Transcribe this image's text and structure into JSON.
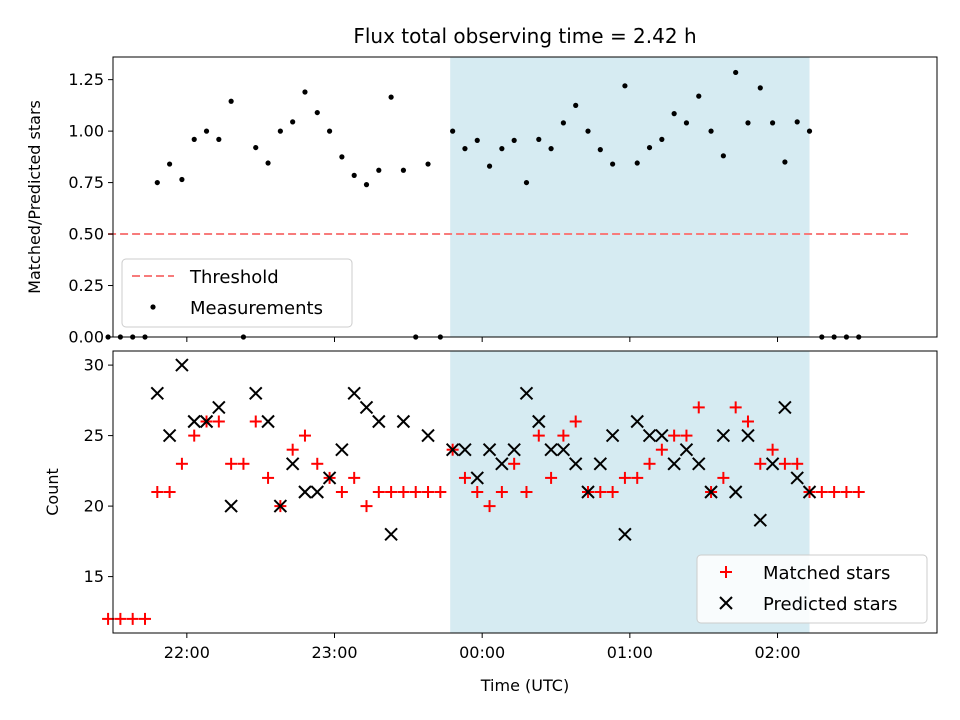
{
  "colors": {
    "threshold": "#f77b7b",
    "measurement": "#000000",
    "matched": "#ff0000",
    "predicted": "#000000",
    "highlight": "#add8e6"
  },
  "chart_data": [
    {
      "type": "scatter",
      "title": "Flux total observing time = 2.42 h",
      "ylabel": "Matched/Predicted stars",
      "ylim": [
        0,
        1.36
      ],
      "y_ticks": [
        0.0,
        0.25,
        0.5,
        0.75,
        1.0,
        1.25
      ],
      "y_tick_labels": [
        "0.00",
        "0.25",
        "0.50",
        "0.75",
        "1.00",
        "1.25"
      ],
      "highlight_span": [
        "23:47",
        "02:13"
      ],
      "legend_position": "lower-left",
      "threshold": {
        "name": "Threshold",
        "value": 0.5,
        "x_range": [
          "21:28",
          "02:53"
        ],
        "style": "dashed"
      },
      "series": [
        {
          "name": "Measurements",
          "points": [
            [
              "21:28",
              0.0
            ],
            [
              "21:33",
              0.0
            ],
            [
              "21:38",
              0.0
            ],
            [
              "21:43",
              0.0
            ],
            [
              "21:48",
              0.75
            ],
            [
              "21:53",
              0.84
            ],
            [
              "21:58",
              0.765
            ],
            [
              "22:03",
              0.96
            ],
            [
              "22:08",
              1.0
            ],
            [
              "22:13",
              0.96
            ],
            [
              "22:18",
              1.145
            ],
            [
              "22:23",
              0.0
            ],
            [
              "22:28",
              0.92
            ],
            [
              "22:33",
              0.845
            ],
            [
              "22:38",
              1.0
            ],
            [
              "22:43",
              1.045
            ],
            [
              "22:48",
              1.19
            ],
            [
              "22:53",
              1.09
            ],
            [
              "22:58",
              1.0
            ],
            [
              "23:03",
              0.875
            ],
            [
              "23:08",
              0.785
            ],
            [
              "23:13",
              0.74
            ],
            [
              "23:18",
              0.81
            ],
            [
              "23:23",
              1.165
            ],
            [
              "23:28",
              0.81
            ],
            [
              "23:33",
              0.0
            ],
            [
              "23:38",
              0.84
            ],
            [
              "23:43",
              0.0
            ],
            [
              "23:48",
              1.0
            ],
            [
              "23:53",
              0.915
            ],
            [
              "23:58",
              0.955
            ],
            [
              "00:03",
              0.83
            ],
            [
              "00:08",
              0.915
            ],
            [
              "00:13",
              0.955
            ],
            [
              "00:18",
              0.75
            ],
            [
              "00:23",
              0.96
            ],
            [
              "00:28",
              0.915
            ],
            [
              "00:33",
              1.04
            ],
            [
              "00:38",
              1.125
            ],
            [
              "00:43",
              1.0
            ],
            [
              "00:48",
              0.91
            ],
            [
              "00:53",
              0.84
            ],
            [
              "00:58",
              1.22
            ],
            [
              "01:03",
              0.845
            ],
            [
              "01:08",
              0.92
            ],
            [
              "01:13",
              0.96
            ],
            [
              "01:18",
              1.085
            ],
            [
              "01:23",
              1.04
            ],
            [
              "01:28",
              1.17
            ],
            [
              "01:33",
              1.0
            ],
            [
              "01:38",
              0.88
            ],
            [
              "01:43",
              1.285
            ],
            [
              "01:48",
              1.04
            ],
            [
              "01:53",
              1.21
            ],
            [
              "01:58",
              1.04
            ],
            [
              "02:03",
              0.85
            ],
            [
              "02:08",
              1.045
            ],
            [
              "02:13",
              1.0
            ],
            [
              "02:18",
              0.0
            ],
            [
              "02:23",
              0.0
            ],
            [
              "02:28",
              0.0
            ],
            [
              "02:33",
              0.0
            ]
          ]
        }
      ]
    },
    {
      "type": "scatter",
      "ylabel": "Count",
      "xlabel": "Time (UTC)",
      "ylim": [
        11,
        31
      ],
      "y_ticks": [
        15,
        20,
        25,
        30
      ],
      "x_ticks": [
        "22:00",
        "23:00",
        "00:00",
        "01:00",
        "02:00"
      ],
      "highlight_span": [
        "23:47",
        "02:13"
      ],
      "legend_position": "lower-right",
      "series": [
        {
          "name": "Matched stars",
          "marker": "+",
          "points": [
            [
              "21:28",
              12
            ],
            [
              "21:33",
              12
            ],
            [
              "21:38",
              12
            ],
            [
              "21:43",
              12
            ],
            [
              "21:48",
              21
            ],
            [
              "21:53",
              21
            ],
            [
              "21:58",
              23
            ],
            [
              "22:03",
              25
            ],
            [
              "22:08",
              26
            ],
            [
              "22:13",
              26
            ],
            [
              "22:18",
              23
            ],
            [
              "22:23",
              23
            ],
            [
              "22:28",
              26
            ],
            [
              "22:33",
              22
            ],
            [
              "22:38",
              20
            ],
            [
              "22:43",
              24
            ],
            [
              "22:48",
              25
            ],
            [
              "22:53",
              23
            ],
            [
              "22:58",
              22
            ],
            [
              "23:03",
              21
            ],
            [
              "23:08",
              22
            ],
            [
              "23:13",
              20
            ],
            [
              "23:18",
              21
            ],
            [
              "23:23",
              21
            ],
            [
              "23:28",
              21
            ],
            [
              "23:33",
              21
            ],
            [
              "23:38",
              21
            ],
            [
              "23:43",
              21
            ],
            [
              "23:48",
              24
            ],
            [
              "23:53",
              22
            ],
            [
              "23:58",
              21
            ],
            [
              "00:03",
              20
            ],
            [
              "00:08",
              21
            ],
            [
              "00:13",
              23
            ],
            [
              "00:18",
              21
            ],
            [
              "00:23",
              25
            ],
            [
              "00:28",
              22
            ],
            [
              "00:33",
              25
            ],
            [
              "00:38",
              26
            ],
            [
              "00:43",
              21
            ],
            [
              "00:48",
              21
            ],
            [
              "00:53",
              21
            ],
            [
              "00:58",
              22
            ],
            [
              "01:03",
              22
            ],
            [
              "01:08",
              23
            ],
            [
              "01:13",
              24
            ],
            [
              "01:18",
              25
            ],
            [
              "01:23",
              25
            ],
            [
              "01:28",
              27
            ],
            [
              "01:33",
              21
            ],
            [
              "01:38",
              22
            ],
            [
              "01:43",
              27
            ],
            [
              "01:48",
              26
            ],
            [
              "01:53",
              23
            ],
            [
              "01:58",
              24
            ],
            [
              "02:03",
              23
            ],
            [
              "02:08",
              23
            ],
            [
              "02:13",
              21
            ],
            [
              "02:18",
              21
            ],
            [
              "02:23",
              21
            ],
            [
              "02:28",
              21
            ],
            [
              "02:33",
              21
            ]
          ]
        },
        {
          "name": "Predicted stars",
          "marker": "x",
          "points": [
            [
              "21:48",
              28
            ],
            [
              "21:53",
              25
            ],
            [
              "21:58",
              30
            ],
            [
              "22:03",
              26
            ],
            [
              "22:08",
              26
            ],
            [
              "22:13",
              27
            ],
            [
              "22:18",
              20
            ],
            [
              "22:28",
              28
            ],
            [
              "22:33",
              26
            ],
            [
              "22:38",
              20
            ],
            [
              "22:43",
              23
            ],
            [
              "22:48",
              21
            ],
            [
              "22:53",
              21
            ],
            [
              "22:58",
              22
            ],
            [
              "23:03",
              24
            ],
            [
              "23:08",
              28
            ],
            [
              "23:13",
              27
            ],
            [
              "23:18",
              26
            ],
            [
              "23:23",
              18
            ],
            [
              "23:28",
              26
            ],
            [
              "23:38",
              25
            ],
            [
              "23:48",
              24
            ],
            [
              "23:53",
              24
            ],
            [
              "23:58",
              22
            ],
            [
              "00:03",
              24
            ],
            [
              "00:08",
              23
            ],
            [
              "00:13",
              24
            ],
            [
              "00:18",
              28
            ],
            [
              "00:23",
              26
            ],
            [
              "00:28",
              24
            ],
            [
              "00:33",
              24
            ],
            [
              "00:38",
              23
            ],
            [
              "00:43",
              21
            ],
            [
              "00:48",
              23
            ],
            [
              "00:53",
              25
            ],
            [
              "00:58",
              18
            ],
            [
              "01:03",
              26
            ],
            [
              "01:08",
              25
            ],
            [
              "01:13",
              25
            ],
            [
              "01:18",
              23
            ],
            [
              "01:23",
              24
            ],
            [
              "01:28",
              23
            ],
            [
              "01:33",
              21
            ],
            [
              "01:38",
              25
            ],
            [
              "01:43",
              21
            ],
            [
              "01:48",
              25
            ],
            [
              "01:53",
              19
            ],
            [
              "01:58",
              23
            ],
            [
              "02:03",
              27
            ],
            [
              "02:08",
              22
            ],
            [
              "02:13",
              21
            ]
          ]
        }
      ]
    }
  ]
}
